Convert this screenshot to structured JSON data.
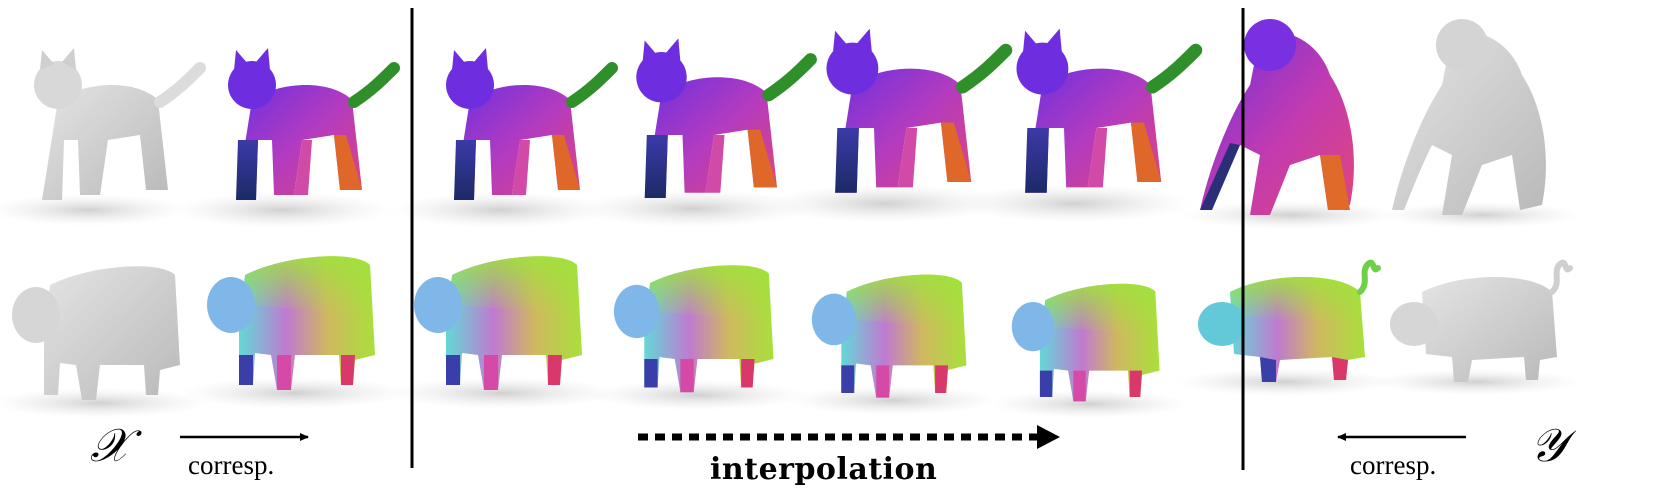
{
  "labels": {
    "source_symbol": "𝒳",
    "target_symbol": "𝒴",
    "left_arrow_caption": "corresp.",
    "middle_arrow_caption": "interpolation",
    "right_arrow_caption": "corresp."
  },
  "colors": {
    "mesh_gray": "#d0d0d0",
    "cat_purple": "#7a2fd6",
    "cat_pink": "#d0389a",
    "cat_orange": "#e06a2a",
    "cat_green": "#2c8a2a",
    "cow_green": "#9be03a",
    "cow_cyan": "#5fd7d7",
    "cow_magenta": "#d44aa6",
    "cow_yellow": "#e6d64a"
  },
  "rows": [
    {
      "shape": "cat-to-gorilla",
      "frames": [
        "source-gray",
        "source-colored",
        "interp-1",
        "interp-2",
        "interp-3",
        "interp-4",
        "target-colored",
        "target-gray"
      ]
    },
    {
      "shape": "cow-to-pig",
      "frames": [
        "source-gray",
        "source-colored",
        "interp-1",
        "interp-2",
        "interp-3",
        "interp-4",
        "target-colored",
        "target-gray"
      ]
    }
  ]
}
